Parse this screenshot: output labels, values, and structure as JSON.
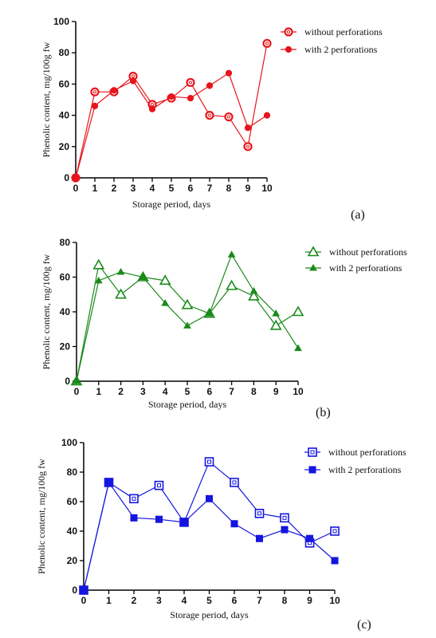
{
  "chart_data": [
    {
      "type": "line",
      "panel_label": "(a)",
      "color": "#e8141b",
      "xlabel": "Storage period, days",
      "ylabel": "Phenolic content, mg/100g fw",
      "x": [
        0,
        1,
        2,
        3,
        4,
        5,
        6,
        7,
        8,
        9,
        10
      ],
      "xlim": [
        0,
        10
      ],
      "ylim": [
        0,
        100
      ],
      "yticks": [
        0,
        20,
        40,
        60,
        80,
        100
      ],
      "legend_position": "top-right",
      "series": [
        {
          "name": "without perforations",
          "marker": "open-circle",
          "values": [
            0,
            55,
            55,
            65,
            47,
            51,
            61,
            40,
            39,
            20,
            86
          ]
        },
        {
          "name": "with  2 perforations",
          "marker": "filled-circle",
          "values": [
            0,
            46,
            56,
            62,
            44,
            52,
            51,
            59,
            67,
            32,
            40
          ]
        }
      ]
    },
    {
      "type": "line",
      "panel_label": "(b)",
      "color": "#1a8a1a",
      "xlabel": "Storage period, days",
      "ylabel": "Phenolic content, mg/100g fw",
      "x": [
        0,
        1,
        2,
        3,
        4,
        5,
        6,
        7,
        8,
        9,
        10
      ],
      "xlim": [
        0,
        10
      ],
      "ylim": [
        0,
        80
      ],
      "yticks": [
        0,
        20,
        40,
        60,
        80
      ],
      "legend_position": "top-right",
      "series": [
        {
          "name": "without perforations",
          "marker": "open-triangle",
          "values": [
            0,
            67,
            50,
            60,
            58,
            44,
            39,
            55,
            49,
            32,
            40
          ]
        },
        {
          "name": "with  2 perforations",
          "marker": "filled-triangle",
          "values": [
            0,
            58,
            63,
            60,
            45,
            32,
            39,
            73,
            52,
            39,
            19
          ]
        }
      ]
    },
    {
      "type": "line",
      "panel_label": "(c)",
      "color": "#1515e0",
      "xlabel": "Storage period, days",
      "ylabel": "Phenolic content, mg/100g fw",
      "x": [
        0,
        1,
        2,
        3,
        4,
        5,
        6,
        7,
        8,
        9,
        10
      ],
      "xlim": [
        0,
        10
      ],
      "ylim": [
        0,
        100
      ],
      "yticks": [
        0,
        20,
        40,
        60,
        80,
        100
      ],
      "legend_position": "top-right",
      "series": [
        {
          "name": "without perforations",
          "marker": "open-square",
          "values": [
            0,
            73,
            62,
            71,
            46,
            87,
            73,
            52,
            49,
            32,
            40
          ]
        },
        {
          "name": "with  2 perforations",
          "marker": "filled-square",
          "values": [
            0,
            73,
            49,
            48,
            46,
            62,
            45,
            35,
            41,
            35,
            20
          ]
        }
      ]
    }
  ]
}
